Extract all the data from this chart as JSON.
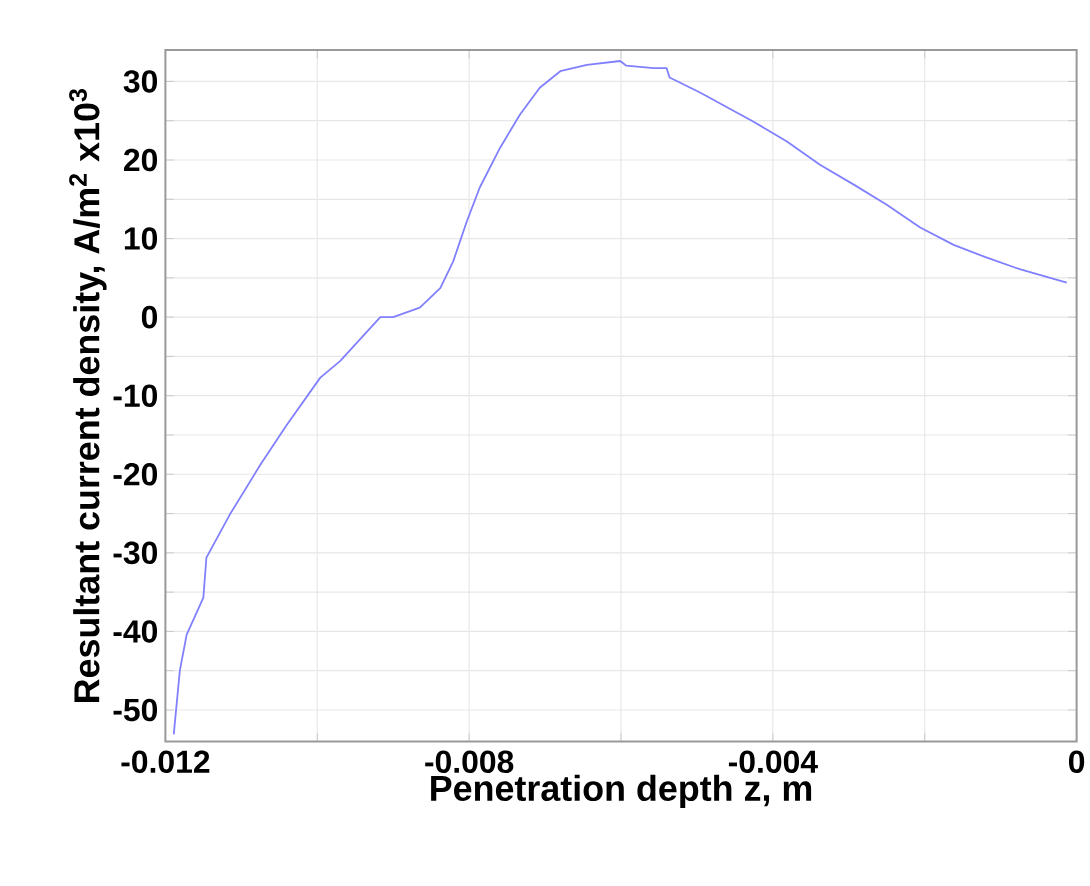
{
  "chart_data": {
    "type": "line",
    "xlabel": "Penetration depth  z, m",
    "ylabel": "Resultant current density, A/m$^{2}$ x10$^{3}$",
    "xlim": [
      -0.012,
      0
    ],
    "ylim": [
      -54,
      34
    ],
    "xticks": [
      -0.012,
      {
        "value": -0.01,
        "label": null
      },
      -0.008,
      {
        "value": -0.006,
        "label": null
      },
      -0.004,
      {
        "value": -0.002,
        "label": null
      },
      0
    ],
    "yticks": [
      -50,
      {
        "value": -45,
        "label": null
      },
      -40,
      {
        "value": -35,
        "label": null
      },
      -30,
      {
        "value": -25,
        "label": null
      },
      -20,
      {
        "value": -15,
        "label": null
      },
      -10,
      {
        "value": -5,
        "label": null
      },
      0,
      {
        "value": 5,
        "label": null
      },
      10,
      {
        "value": 15,
        "label": null
      },
      20,
      {
        "value": 25,
        "label": null
      },
      30
    ],
    "grid": true,
    "marker": "none",
    "line_style": "solid",
    "series": [
      {
        "color": "#8080ff",
        "x": [
          -0.01189,
          -0.01181,
          -0.01172,
          -0.0115,
          -0.01146,
          -0.01115,
          -0.01075,
          -0.0104,
          -0.00996,
          -0.0097,
          -0.00917,
          -0.009,
          -0.00865,
          -0.00838,
          -0.00821,
          -0.00803,
          -0.00786,
          -0.00759,
          -0.00733,
          -0.00707,
          -0.0068,
          -0.00645,
          -0.00601,
          -0.00593,
          -0.00557,
          -0.0054,
          -0.00536,
          -0.00496,
          -0.00426,
          -0.00382,
          -0.00338,
          -0.00294,
          -0.0025,
          -0.00206,
          -0.00162,
          -0.00119,
          -0.00075,
          -0.00013
        ],
        "values": [
          -53.1,
          -45.0,
          -40.4,
          -35.7,
          -30.6,
          -25.1,
          -18.8,
          -13.7,
          -7.7,
          -5.6,
          0,
          0,
          1.2,
          3.7,
          7.1,
          12.2,
          16.5,
          21.6,
          25.8,
          29.2,
          31.3,
          32.1,
          32.6,
          32.0,
          31.7,
          31.7,
          30.5,
          28.6,
          24.9,
          22.4,
          19.4,
          16.9,
          14.3,
          11.4,
          9.2,
          7.6,
          6.1,
          4.4
        ]
      }
    ]
  }
}
